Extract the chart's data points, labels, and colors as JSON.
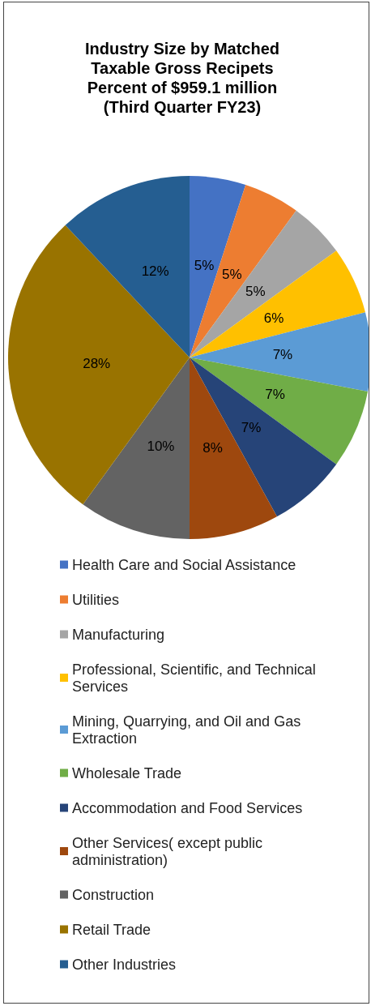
{
  "chart_data": {
    "type": "pie",
    "title": "Industry Size by Matched\nTaxable Gross Recipets\nPercent of $959.1 million\n(Third Quarter FY23)",
    "categories": [
      "Health Care and Social Assistance",
      "Utilities",
      "Manufacturing",
      "Professional, Scientific, and Technical Services",
      "Mining, Quarrying, and Oil and Gas Extraction",
      "Wholesale Trade",
      "Accommodation and Food Services",
      "Other Services( except public administration)",
      "Construction",
      "Retail Trade",
      "Other Industries"
    ],
    "values": [
      5,
      5,
      5,
      6,
      7,
      7,
      7,
      8,
      10,
      28,
      12
    ],
    "value_labels": [
      "5%",
      "5%",
      "5%",
      "6%",
      "7%",
      "7%",
      "7%",
      "8%",
      "10%",
      "28%",
      "12%"
    ],
    "colors": [
      "#4472c4",
      "#ed7d31",
      "#a5a5a5",
      "#ffc000",
      "#5b9bd5",
      "#70ad47",
      "#264478",
      "#9e480e",
      "#636363",
      "#997300",
      "#255e91"
    ],
    "legend": "bottom"
  }
}
